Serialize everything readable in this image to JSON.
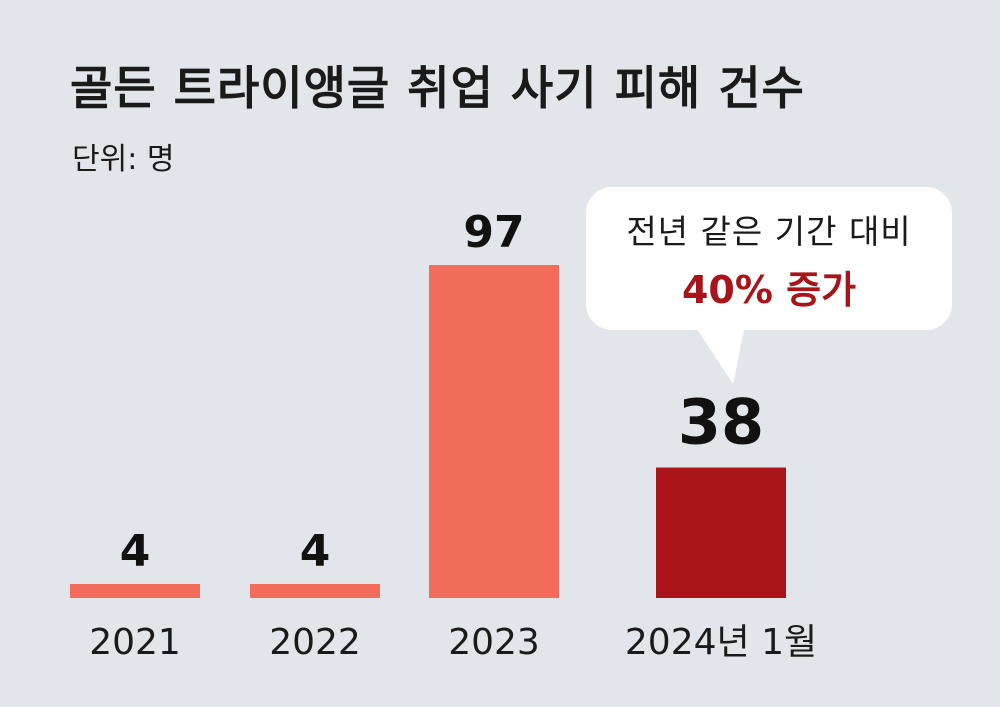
{
  "title": "골든 트라이앵글 취업 사기 피해 건수",
  "unit": "단위: 명",
  "callout": {
    "line1": "전년 같은 기간 대비",
    "line2": "40% 증가"
  },
  "colors": {
    "background": "#e2e6ea",
    "bar": "#f26b5b",
    "bar_highlight": "#a81419",
    "callout_accent": "#a81419"
  },
  "chart_data": {
    "type": "bar",
    "title": "골든 트라이앵글 취업 사기 피해 건수",
    "categories": [
      "2021",
      "2022",
      "2023",
      "2024년 1월"
    ],
    "values": [
      4,
      4,
      97,
      38
    ],
    "data_labels": [
      "4",
      "4",
      "97",
      "38"
    ],
    "highlight_index": 3,
    "ylim": [
      0,
      100
    ],
    "xlabel": "",
    "ylabel": "",
    "grid": false
  }
}
